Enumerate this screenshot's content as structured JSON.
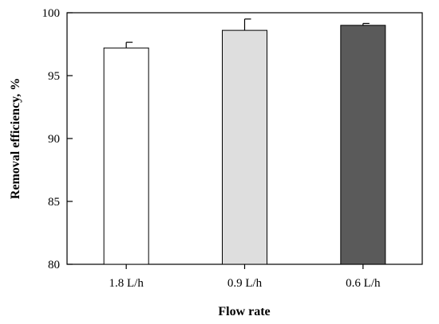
{
  "chart_data": {
    "type": "bar",
    "categories": [
      "1.8 L/h",
      "0.9 L/h",
      "0.6 L/h"
    ],
    "values": [
      97.2,
      98.6,
      99.0
    ],
    "errors": [
      0.45,
      0.9,
      0.15
    ],
    "bar_colors": [
      "#ffffff",
      "#dedede",
      "#5a5a5a"
    ],
    "title": "",
    "xlabel": "Flow rate",
    "ylabel": "Removal efficiency, %",
    "ylim": [
      80,
      100
    ],
    "yticks": [
      80,
      85,
      90,
      95,
      100
    ],
    "ytick_labels": [
      "80",
      "85",
      "90",
      "95",
      "100"
    ],
    "grid": false,
    "legend": "none"
  }
}
